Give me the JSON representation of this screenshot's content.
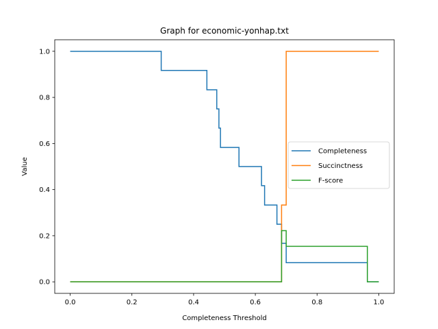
{
  "chart_data": {
    "type": "line",
    "title": "Graph for economic-yonhap.txt",
    "xlabel": "Completeness Threshold",
    "ylabel": "Value",
    "xlim": [
      -0.05,
      1.05
    ],
    "ylim": [
      -0.05,
      1.05
    ],
    "xticks": [
      0.0,
      0.2,
      0.4,
      0.6,
      0.8,
      1.0
    ],
    "xtick_labels": [
      "0.0",
      "0.2",
      "0.4",
      "0.6",
      "0.8",
      "1.0"
    ],
    "yticks": [
      0.0,
      0.2,
      0.4,
      0.6,
      0.8,
      1.0
    ],
    "ytick_labels": [
      "0.0",
      "0.2",
      "0.4",
      "0.6",
      "0.8",
      "1.0"
    ],
    "legend_position": "center-right",
    "series": [
      {
        "name": "Completeness",
        "color": "#1f77b4",
        "points": [
          [
            0.0,
            1.0
          ],
          [
            0.295,
            1.0
          ],
          [
            0.295,
            0.917
          ],
          [
            0.443,
            0.917
          ],
          [
            0.443,
            0.833
          ],
          [
            0.475,
            0.833
          ],
          [
            0.475,
            0.75
          ],
          [
            0.482,
            0.75
          ],
          [
            0.482,
            0.667
          ],
          [
            0.487,
            0.667
          ],
          [
            0.487,
            0.583
          ],
          [
            0.547,
            0.583
          ],
          [
            0.547,
            0.5
          ],
          [
            0.62,
            0.5
          ],
          [
            0.62,
            0.417
          ],
          [
            0.63,
            0.417
          ],
          [
            0.63,
            0.333
          ],
          [
            0.67,
            0.333
          ],
          [
            0.67,
            0.25
          ],
          [
            0.685,
            0.25
          ],
          [
            0.685,
            0.167
          ],
          [
            0.7,
            0.167
          ],
          [
            0.7,
            0.083
          ],
          [
            0.963,
            0.083
          ],
          [
            0.963,
            0.0
          ],
          [
            1.0,
            0.0
          ]
        ]
      },
      {
        "name": "Succinctness",
        "color": "#ff7f0e",
        "points": [
          [
            0.0,
            0.0
          ],
          [
            0.685,
            0.0
          ],
          [
            0.685,
            0.333
          ],
          [
            0.7,
            0.333
          ],
          [
            0.7,
            1.0
          ],
          [
            1.0,
            1.0
          ]
        ]
      },
      {
        "name": "F-score",
        "color": "#2ca02c",
        "points": [
          [
            0.0,
            0.0
          ],
          [
            0.685,
            0.0
          ],
          [
            0.685,
            0.222
          ],
          [
            0.7,
            0.222
          ],
          [
            0.7,
            0.154
          ],
          [
            0.963,
            0.154
          ],
          [
            0.963,
            0.0
          ],
          [
            1.0,
            0.0
          ]
        ]
      }
    ]
  }
}
